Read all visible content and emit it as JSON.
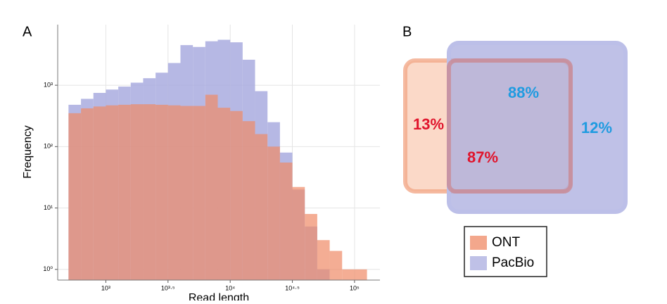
{
  "chart_data": [
    {
      "type": "histogram",
      "title": "A",
      "x_label": "Read length",
      "y_label": "Frequency",
      "bins": [
        501,
        631,
        794,
        1000,
        1259,
        1585,
        1995,
        2512,
        3162,
        3981,
        5012,
        6310,
        7943,
        10000,
        12589,
        15849,
        19953,
        25119,
        31623,
        39811,
        50119,
        63096,
        79433,
        100000,
        125893
      ],
      "series": [
        {
          "name": "PacBio",
          "color": "#a9acdf",
          "values": [
            480,
            600,
            750,
            850,
            950,
            1100,
            1300,
            1600,
            2300,
            4500,
            4200,
            5200,
            5500,
            5000,
            2600,
            800,
            250,
            80,
            20,
            5,
            1,
            null,
            null,
            null
          ]
        },
        {
          "name": "ONT",
          "color": "#ef8a66",
          "values": [
            350,
            420,
            450,
            470,
            480,
            490,
            490,
            480,
            470,
            460,
            460,
            700,
            430,
            380,
            260,
            160,
            100,
            55,
            22,
            8,
            3,
            2,
            1,
            1
          ]
        }
      ],
      "log_x": true,
      "log_y": true,
      "xlim": [
        410,
        160000
      ],
      "xticks": [
        {
          "value": 1000,
          "label": "10³"
        },
        {
          "value": 3162,
          "label": "10³·⁵"
        },
        {
          "value": 10000,
          "label": "10⁴"
        },
        {
          "value": 31623,
          "label": "10⁴·⁵"
        },
        {
          "value": 100000,
          "label": "10⁵"
        }
      ],
      "ylim": [
        0.67,
        9700
      ],
      "yticks": [
        {
          "value": 1,
          "label": "10⁰"
        },
        {
          "value": 10,
          "label": "10¹"
        },
        {
          "value": 100,
          "label": "10²"
        },
        {
          "value": 1000,
          "label": "10³"
        }
      ],
      "grid": true
    },
    {
      "type": "venn",
      "title": "B",
      "values": [
        13,
        87,
        88,
        12
      ],
      "value_labels": [
        "13%",
        "87%",
        "88%",
        "12%"
      ],
      "label_colors": [
        "#e0142c",
        "#e0142c",
        "#1f9be0",
        "#1f9be0"
      ]
    }
  ]
}
